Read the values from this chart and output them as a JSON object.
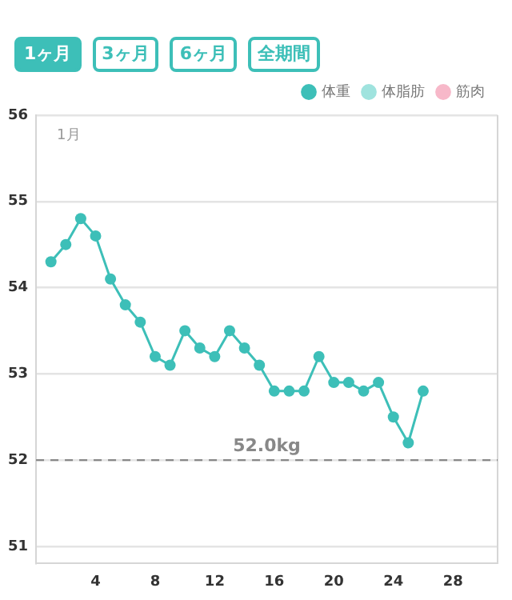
{
  "chart_data": {
    "type": "line",
    "x": [
      1,
      2,
      3,
      4,
      5,
      6,
      7,
      8,
      9,
      10,
      11,
      12,
      13,
      14,
      15,
      16,
      17,
      18,
      19,
      20,
      21,
      22,
      23,
      24,
      25,
      26
    ],
    "series": [
      {
        "name": "体重",
        "color": "#3dbfb8",
        "values": [
          54.3,
          54.5,
          54.8,
          54.6,
          54.1,
          53.8,
          53.6,
          53.2,
          53.1,
          53.5,
          53.3,
          53.2,
          53.5,
          53.3,
          53.1,
          52.8,
          52.8,
          52.8,
          53.2,
          52.9,
          52.9,
          52.8,
          52.9,
          52.5,
          52.2,
          52.8
        ]
      },
      {
        "name": "体脂肪",
        "color": "#9fe3de",
        "values": [
          null,
          null,
          null,
          null,
          null,
          null,
          null,
          null,
          null,
          null,
          null,
          null,
          null,
          null,
          null,
          null,
          null,
          null,
          null,
          null,
          null,
          null,
          null,
          null,
          null,
          null
        ]
      },
      {
        "name": "筋肉",
        "color": "#f7b8c9",
        "values": [
          null,
          null,
          null,
          null,
          null,
          null,
          null,
          null,
          null,
          null,
          null,
          null,
          null,
          null,
          null,
          null,
          null,
          null,
          null,
          null,
          null,
          null,
          null,
          null,
          null,
          null
        ]
      }
    ],
    "xlim": [
      0,
      31
    ],
    "xticks": [
      4,
      8,
      12,
      16,
      20,
      24,
      28
    ],
    "ylim": [
      50.8,
      56
    ],
    "yticks": [
      51,
      52,
      53,
      54,
      55,
      56
    ],
    "grid": "y",
    "legend": "top right",
    "marker": "circle",
    "line_style": "solid",
    "ref_lines": [
      {
        "axis": "y",
        "value": 52,
        "label": "52.0kg",
        "line_style": "dashed",
        "color": "#888888"
      }
    ],
    "annotations": [
      "1ヶ月",
      "3ヶ月",
      "6ヶ月",
      "全期間",
      "1月"
    ]
  }
}
